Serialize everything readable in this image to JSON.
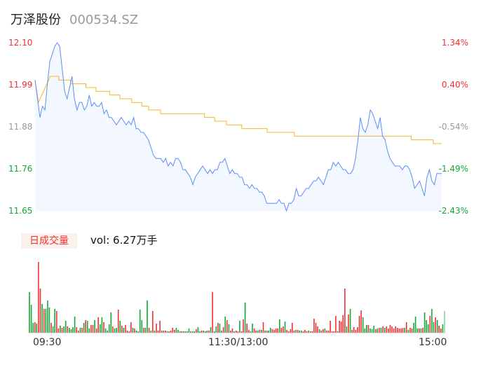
{
  "header": {
    "name": "万泽股份",
    "code": "000534.SZ"
  },
  "colors": {
    "up": "#f23030",
    "down": "#13a838",
    "flat": "#999999",
    "price_line": "#5b8ff9",
    "avg_line": "#f7b52c",
    "fill": "#eef4ff"
  },
  "volume_panel": {
    "tag": "日成交量",
    "vol_text": "vol: 6.27万手"
  },
  "chart_data": [
    {
      "type": "line",
      "prev_close": 11.94,
      "ylim": [
        11.65,
        12.1
      ],
      "y_ticks_left": [
        "12.10",
        "11.99",
        "11.88",
        "11.76",
        "11.65"
      ],
      "y_ticks_right": [
        "1.34%",
        "0.40%",
        "-0.54%",
        "-1.49%",
        "-2.43%"
      ],
      "x_ticks": [
        "09:30",
        "11:30/13:00",
        "15:00"
      ],
      "price": [
        12.0,
        11.95,
        11.9,
        11.93,
        11.92,
        11.99,
        12.05,
        12.07,
        12.09,
        12.1,
        12.09,
        12.03,
        11.97,
        11.95,
        11.98,
        12.01,
        11.95,
        11.92,
        11.94,
        11.94,
        11.92,
        11.93,
        11.96,
        11.93,
        11.94,
        11.93,
        11.93,
        11.94,
        11.91,
        11.92,
        11.9,
        11.9,
        11.89,
        11.88,
        11.89,
        11.9,
        11.89,
        11.88,
        11.89,
        11.88,
        11.9,
        11.87,
        11.87,
        11.86,
        11.86,
        11.85,
        11.84,
        11.82,
        11.8,
        11.79,
        11.79,
        11.79,
        11.78,
        11.79,
        11.77,
        11.78,
        11.77,
        11.79,
        11.79,
        11.78,
        11.76,
        11.76,
        11.75,
        11.74,
        11.72,
        11.74,
        11.75,
        11.76,
        11.77,
        11.76,
        11.75,
        11.76,
        11.75,
        11.76,
        11.76,
        11.78,
        11.78,
        11.79,
        11.77,
        11.75,
        11.76,
        11.75,
        11.75,
        11.74,
        11.74,
        11.72,
        11.72,
        11.71,
        11.72,
        11.71,
        11.71,
        11.7,
        11.7,
        11.69,
        11.67,
        11.67,
        11.67,
        11.67,
        11.67,
        11.68,
        11.67,
        11.67,
        11.65,
        11.67,
        11.67,
        11.68,
        11.71,
        11.69,
        11.69,
        11.7,
        11.71,
        11.71,
        11.72,
        11.73,
        11.73,
        11.74,
        11.73,
        11.72,
        11.74,
        11.76,
        11.76,
        11.78,
        11.77,
        11.78,
        11.77,
        11.76,
        11.76,
        11.75,
        11.75,
        11.76,
        11.79,
        11.84,
        11.9,
        11.87,
        11.86,
        11.88,
        11.92,
        11.91,
        11.89,
        11.87,
        11.9,
        11.85,
        11.84,
        11.81,
        11.79,
        11.78,
        11.77,
        11.77,
        11.77,
        11.76,
        11.77,
        11.77,
        11.76,
        11.74,
        11.71,
        11.72,
        11.73,
        11.71,
        11.69,
        11.74,
        11.76,
        11.73,
        11.72,
        11.75,
        11.75,
        11.75
      ],
      "avg": [
        {
          "t": "09:30",
          "v": 12.0
        },
        {
          "t": "09:32",
          "v": 11.94
        },
        {
          "t": "09:39",
          "v": 12.01
        },
        {
          "t": "09:44",
          "v": 12.0
        },
        {
          "t": "09:51",
          "v": 11.99
        },
        {
          "t": "10:00",
          "v": 11.98
        },
        {
          "t": "10:06",
          "v": 11.97
        },
        {
          "t": "10:14",
          "v": 11.96
        },
        {
          "t": "10:20",
          "v": 11.95
        },
        {
          "t": "10:27",
          "v": 11.94
        },
        {
          "t": "10:33",
          "v": 11.93
        },
        {
          "t": "10:37",
          "v": 11.92
        },
        {
          "t": "10:44",
          "v": 11.91
        },
        {
          "t": "11:10",
          "v": 11.9
        },
        {
          "t": "11:16",
          "v": 11.89
        },
        {
          "t": "11:23",
          "v": 11.88
        },
        {
          "t": "13:02",
          "v": 11.87
        },
        {
          "t": "13:17",
          "v": 11.86
        },
        {
          "t": "13:33",
          "v": 11.85
        },
        {
          "t": "14:42",
          "v": 11.84
        },
        {
          "t": "14:55",
          "v": 11.83
        },
        {
          "t": "15:00",
          "v": 11.83
        }
      ]
    },
    {
      "type": "bar",
      "name": "日成交量",
      "values": [
        58,
        40,
        14,
        15,
        13,
        101,
        63,
        41,
        34,
        34,
        46,
        36,
        14,
        9,
        34,
        31,
        6,
        10,
        7,
        9,
        17,
        9,
        7,
        5,
        8,
        23,
        8,
        3,
        7,
        7,
        14,
        18,
        17,
        6,
        11,
        11,
        18,
        6,
        22,
        12,
        22,
        15,
        6,
        3,
        12,
        29,
        9,
        6,
        7,
        33,
        17,
        10,
        7,
        11,
        3,
        2,
        15,
        7,
        6,
        3,
        2,
        33,
        18,
        7,
        7,
        46,
        7,
        3,
        31,
        3,
        13,
        3,
        17,
        3,
        3,
        3,
        2,
        2,
        3,
        7,
        4,
        7,
        4,
        2,
        2,
        2,
        2,
        2,
        6,
        2,
        2,
        2,
        5,
        8,
        2,
        3,
        3,
        2,
        3,
        3,
        8,
        58,
        2,
        9,
        14,
        13,
        3,
        8,
        23,
        18,
        12,
        3,
        6,
        2,
        3,
        2,
        17,
        2,
        19,
        43,
        13,
        4,
        2,
        13,
        6,
        3,
        3,
        4,
        4,
        15,
        3,
        3,
        3,
        7,
        5,
        4,
        6,
        6,
        19,
        7,
        9,
        16,
        4,
        2,
        5,
        14,
        3,
        4,
        4,
        3,
        3,
        2,
        4,
        2,
        3,
        2,
        2,
        20,
        14,
        9,
        5,
        3,
        5,
        6,
        3,
        3,
        17,
        2,
        2,
        24,
        2,
        17,
        16,
        25,
        63,
        9,
        26,
        34,
        4,
        8,
        4,
        8,
        24,
        32,
        22,
        6,
        11,
        11,
        6,
        5,
        10,
        5,
        6,
        7,
        7,
        9,
        7,
        9,
        6,
        11,
        9,
        6,
        9,
        7,
        6,
        6,
        7,
        7,
        15,
        4,
        7,
        6,
        14,
        23,
        6,
        6,
        6,
        7,
        29,
        18,
        12,
        24,
        34,
        15,
        22,
        18,
        10,
        6,
        12,
        31
      ],
      "direction": "gggrgrrgrgggrggrrgrggrggggrrgrgrggrrgrrggrggggrggrgrgrrrrgrggggrggrgrgrrrgrrgrrrrggrgrgggrggrggrgrgrgrggrggrgrgrrgrrgrrgrrggrrgrgrgrggrrrrgrrgrrrrrgrggrrrgrrrrrgrrgrrrrrrgrrrrgrgrrrrrrgggrgggrgrgrgrrrrrrrrrrgrgrrgggrgrgggrggrgrr"
    }
  ]
}
